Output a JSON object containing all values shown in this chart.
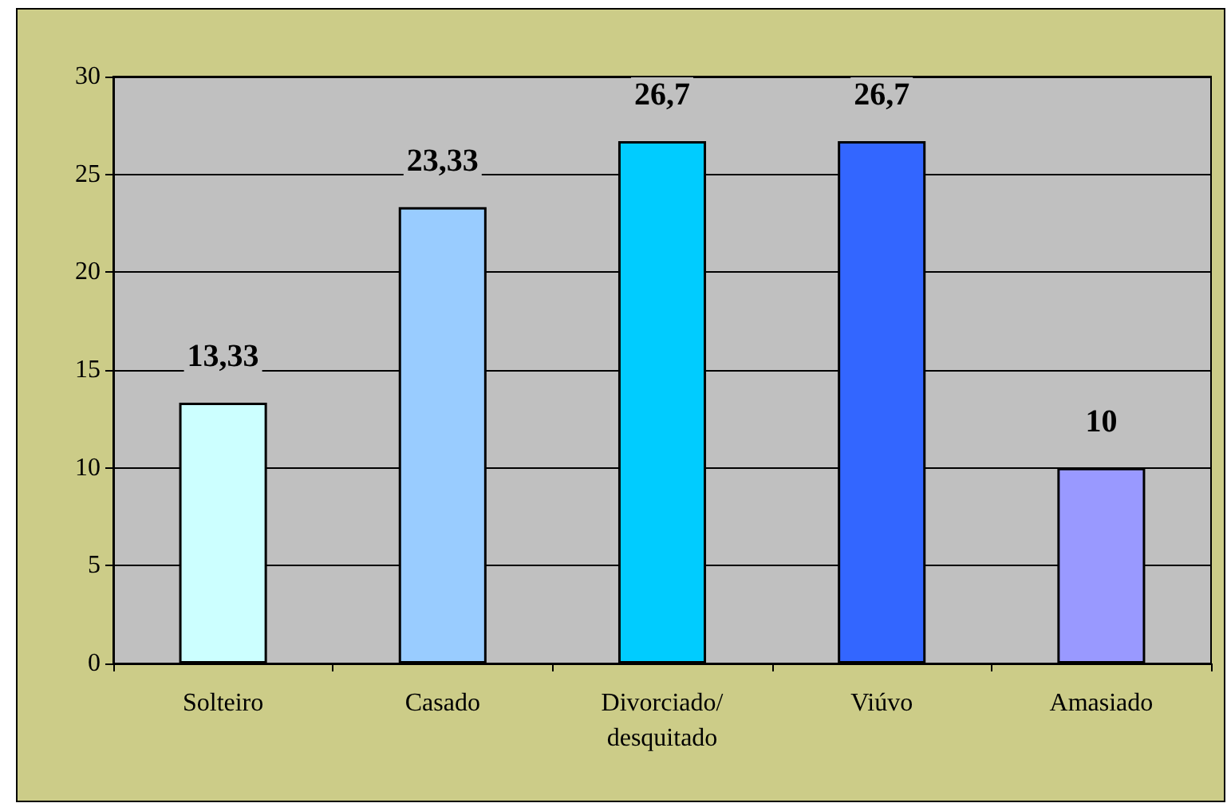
{
  "chart_data": {
    "type": "bar",
    "categories": [
      "Solteiro",
      "Casado",
      "Divorciado/\ndesquitado",
      "Viúvo",
      "Amasiado"
    ],
    "values": [
      13.33,
      23.33,
      26.7,
      26.7,
      10
    ],
    "colors": [
      "#ccffff",
      "#99ccff",
      "#00ccff",
      "#3366ff",
      "#9999ff"
    ],
    "value_labels": [
      "13,33",
      "23,33",
      "26,7",
      "26,7",
      "10"
    ],
    "ylim": [
      0,
      30
    ],
    "yticks": [
      0,
      5,
      10,
      15,
      20,
      25,
      30
    ],
    "grid": "y"
  }
}
